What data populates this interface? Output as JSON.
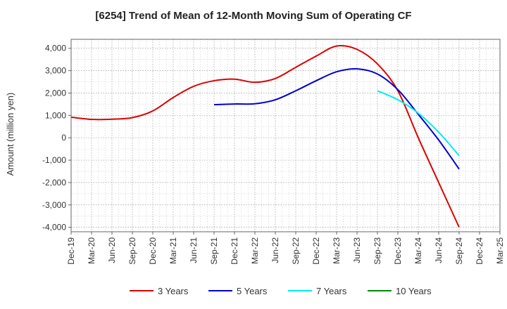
{
  "chart_data": {
    "type": "line",
    "title": "[6254]  Trend of Mean of 12-Month Moving Sum of Operating CF",
    "xlabel": "",
    "ylabel": "Amount (million yen)",
    "ylim": [
      -4200,
      4400
    ],
    "yticks": [
      4000,
      3000,
      2000,
      1000,
      0,
      -1000,
      -2000,
      -3000,
      -4000
    ],
    "ytick_labels": [
      "4,000",
      "3,000",
      "2,000",
      "1,000",
      "0",
      "-1,000",
      "-2,000",
      "-3,000",
      "-4,000"
    ],
    "x_tick_labels": [
      "Dec-19",
      "Mar-20",
      "Jun-20",
      "Sep-20",
      "Dec-20",
      "Mar-21",
      "Jun-21",
      "Sep-21",
      "Dec-21",
      "Mar-22",
      "Jun-22",
      "Sep-22",
      "Dec-22",
      "Mar-23",
      "Jun-23",
      "Sep-23",
      "Dec-23",
      "Mar-24",
      "Jun-24",
      "Sep-24",
      "Dec-24",
      "Mar-25"
    ],
    "grid": true,
    "legend_position": "bottom",
    "series": [
      {
        "name": "3 Years",
        "color": "#dd0000",
        "start_index": 0,
        "values": [
          920,
          820,
          830,
          900,
          1200,
          1800,
          2300,
          2550,
          2620,
          2480,
          2650,
          3150,
          3650,
          4100,
          3950,
          3300,
          2100,
          0,
          -2000,
          -4000
        ]
      },
      {
        "name": "5 Years",
        "color": "#0000cc",
        "start_index": 7,
        "values": [
          1480,
          1510,
          1520,
          1700,
          2100,
          2550,
          2950,
          3080,
          2850,
          2150,
          1050,
          -100,
          -1400
        ]
      },
      {
        "name": "7 Years",
        "color": "#00eeee",
        "start_index": 15,
        "values": [
          2100,
          1700,
          1100,
          250,
          -800
        ]
      },
      {
        "name": "10 Years",
        "color": "#008800",
        "start_index": 0,
        "values": []
      }
    ]
  }
}
